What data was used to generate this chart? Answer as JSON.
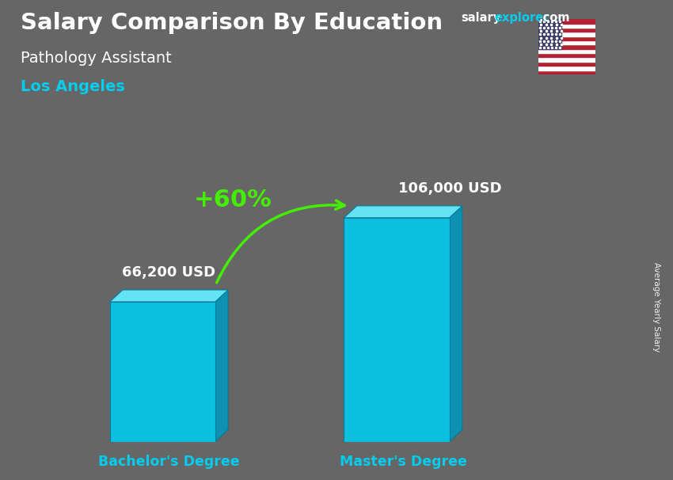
{
  "title_main": "Salary Comparison By Education",
  "subtitle_job": "Pathology Assistant",
  "subtitle_location": "Los Angeles",
  "categories": [
    "Bachelor's Degree",
    "Master's Degree"
  ],
  "values": [
    66200,
    106000
  ],
  "value_labels": [
    "66,200 USD",
    "106,000 USD"
  ],
  "bar_color_face": "#00ccee",
  "bar_color_top": "#66eeff",
  "bar_color_side": "#0099bb",
  "pct_change": "+60%",
  "ylabel_rotated": "Average Yearly Salary",
  "bg_color": "#666666",
  "figsize": [
    8.5,
    6.06
  ],
  "dpi": 100,
  "salary_color": "#ffffff",
  "explorer_color": "#00ccee",
  "dotcom_color": "#ffffff",
  "location_color": "#00ccee",
  "arrow_color": "#44ee00",
  "label_color": "#ffffff",
  "cat_color": "#00ccee",
  "max_val": 125000
}
